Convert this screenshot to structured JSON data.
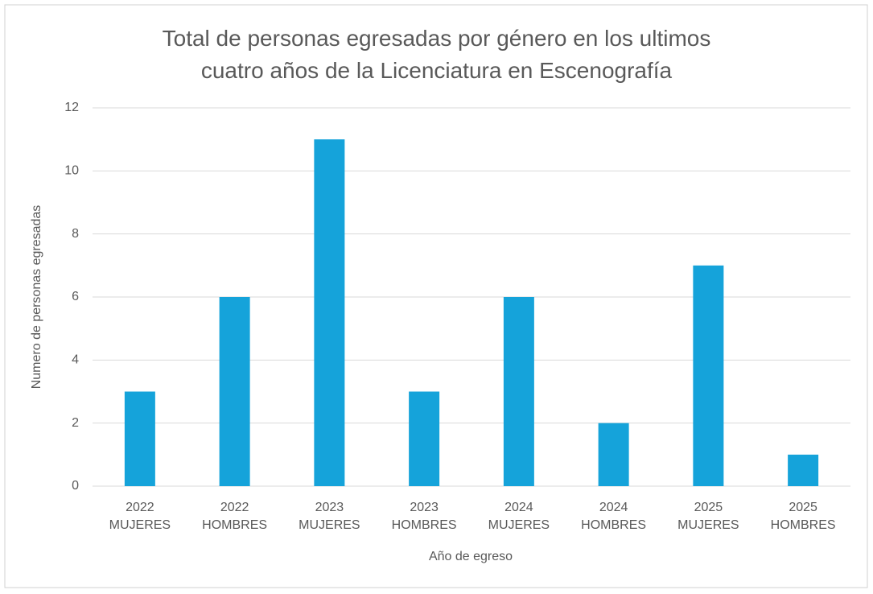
{
  "chart_data": {
    "type": "bar",
    "title": "Total de personas egresadas por género  en los ultimos\ncuatro  años de la Licenciatura en Escenografía",
    "x_label": "Año de egreso",
    "y_label": "Numero de personas egresadas",
    "categories": [
      "2022\nMUJERES",
      "2022\nHOMBRES",
      "2023\nMUJERES",
      "2023\nHOMBRES",
      "2024\nMUJERES",
      "2024\nHOMBRES",
      "2025\nMUJERES",
      "2025\nHOMBRES"
    ],
    "values": [
      3,
      6,
      11,
      3,
      6,
      2,
      7,
      1
    ],
    "color": "#15a3da",
    "ylim": [
      0,
      12
    ],
    "yticks": [
      0,
      2,
      4,
      6,
      8,
      10,
      12
    ],
    "grid": true
  }
}
